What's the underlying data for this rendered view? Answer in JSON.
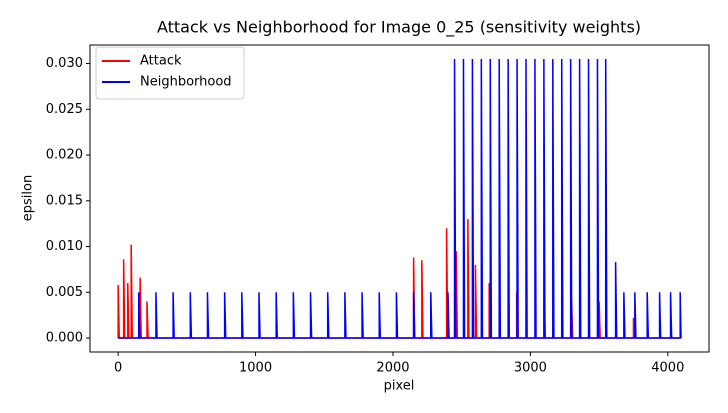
{
  "chart_data": {
    "type": "line",
    "title": "Attack vs Neighborhood for Image 0_25 (sensitivity weights)",
    "x_label": "pixel",
    "y_label": "epsilon",
    "xlim": [
      -204.75,
      4299.75
    ],
    "xticks": [
      0,
      1000,
      2000,
      3000,
      4000
    ],
    "ylim": [
      -0.001525,
      0.032025
    ],
    "yticks": [
      {
        "value": 0,
        "label": "0.000"
      },
      {
        "value": 0.005,
        "label": "0.005"
      },
      {
        "value": 0.01,
        "label": "0.010"
      },
      {
        "value": 0.015,
        "label": "0.015"
      },
      {
        "value": 0.02,
        "label": "0.020"
      },
      {
        "value": 0.025,
        "label": "0.025"
      },
      {
        "value": 0.03,
        "label": "0.030"
      }
    ],
    "legend": "upper left",
    "series": [
      {
        "name": "Attack",
        "color": "#ff0000",
        "x": [
          0,
          0,
          8,
          40,
          40,
          48,
          70,
          70,
          78,
          95,
          95,
          103,
          160,
          160,
          168,
          210,
          210,
          218,
          2150,
          2150,
          2158,
          2210,
          2210,
          2218,
          2390,
          2390,
          2398,
          2460,
          2460,
          2468,
          2545,
          2545,
          2553,
          2600,
          2600,
          2608,
          2700,
          2700,
          2708,
          2900,
          2900,
          2908,
          3100,
          3100,
          3108,
          3300,
          3300,
          3308,
          3500,
          3500,
          3508,
          3750,
          3750,
          3758,
          4096
        ],
        "values": [
          0,
          0.0058,
          0,
          0,
          0.0086,
          0,
          0,
          0.006,
          0,
          0,
          0.0102,
          0,
          0,
          0.0066,
          0,
          0,
          0.004,
          0,
          0,
          0.0088,
          0,
          0,
          0.0085,
          0,
          0,
          0.012,
          0,
          0,
          0.0095,
          0,
          0,
          0.013,
          0,
          0,
          0.008,
          0,
          0,
          0.006,
          0,
          0,
          0.005,
          0,
          0,
          0.005,
          0,
          0,
          0.004,
          0,
          0,
          0.004,
          0,
          0,
          0.0022,
          0,
          0
        ]
      },
      {
        "name": "Neighborhood",
        "color": "#0000ff",
        "x": [
          0,
          150,
          150,
          158,
          275,
          275,
          283,
          400,
          400,
          408,
          525,
          525,
          533,
          650,
          650,
          658,
          775,
          775,
          783,
          900,
          900,
          908,
          1025,
          1025,
          1033,
          1150,
          1150,
          1158,
          1275,
          1275,
          1283,
          1400,
          1400,
          1408,
          1525,
          1525,
          1533,
          1650,
          1650,
          1658,
          1775,
          1775,
          1783,
          1900,
          1900,
          1908,
          2025,
          2025,
          2033,
          2150,
          2150,
          2158,
          2275,
          2275,
          2283,
          2400,
          2400,
          2408,
          2448,
          2448,
          2456,
          2513,
          2513,
          2521,
          2578,
          2578,
          2586,
          2643,
          2643,
          2651,
          2708,
          2708,
          2716,
          2773,
          2773,
          2781,
          2838,
          2838,
          2846,
          2903,
          2903,
          2911,
          2968,
          2968,
          2976,
          3033,
          3033,
          3041,
          3098,
          3098,
          3106,
          3163,
          3163,
          3171,
          3228,
          3228,
          3236,
          3293,
          3293,
          3301,
          3358,
          3358,
          3366,
          3423,
          3423,
          3431,
          3488,
          3488,
          3496,
          3548,
          3548,
          3556,
          3620,
          3620,
          3628,
          3680,
          3680,
          3688,
          3760,
          3760,
          3768,
          3850,
          3850,
          3858,
          3940,
          3940,
          3948,
          4020,
          4020,
          4028,
          4090,
          4090,
          4096
        ],
        "values": [
          0,
          0,
          0.005,
          0,
          0,
          0.005,
          0,
          0,
          0.005,
          0,
          0,
          0.005,
          0,
          0,
          0.005,
          0,
          0,
          0.005,
          0,
          0,
          0.005,
          0,
          0,
          0.005,
          0,
          0,
          0.005,
          0,
          0,
          0.005,
          0,
          0,
          0.005,
          0,
          0,
          0.005,
          0,
          0,
          0.005,
          0,
          0,
          0.005,
          0,
          0,
          0.005,
          0,
          0,
          0.005,
          0,
          0,
          0.005,
          0,
          0,
          0.005,
          0,
          0,
          0.005,
          0,
          0,
          0.0305,
          0,
          0,
          0.0305,
          0,
          0,
          0.0305,
          0,
          0,
          0.0305,
          0,
          0,
          0.0305,
          0,
          0,
          0.0305,
          0,
          0,
          0.0305,
          0,
          0,
          0.0305,
          0,
          0,
          0.0305,
          0,
          0,
          0.0305,
          0,
          0,
          0.0305,
          0,
          0,
          0.0305,
          0,
          0,
          0.0305,
          0,
          0,
          0.0305,
          0,
          0,
          0.0305,
          0,
          0,
          0.0305,
          0,
          0,
          0.0305,
          0,
          0,
          0.0305,
          0,
          0,
          0.0083,
          0,
          0,
          0.005,
          0,
          0,
          0.005,
          0,
          0,
          0.005,
          0,
          0,
          0.005,
          0,
          0,
          0.005,
          0,
          0,
          0.005,
          0
        ]
      }
    ]
  }
}
